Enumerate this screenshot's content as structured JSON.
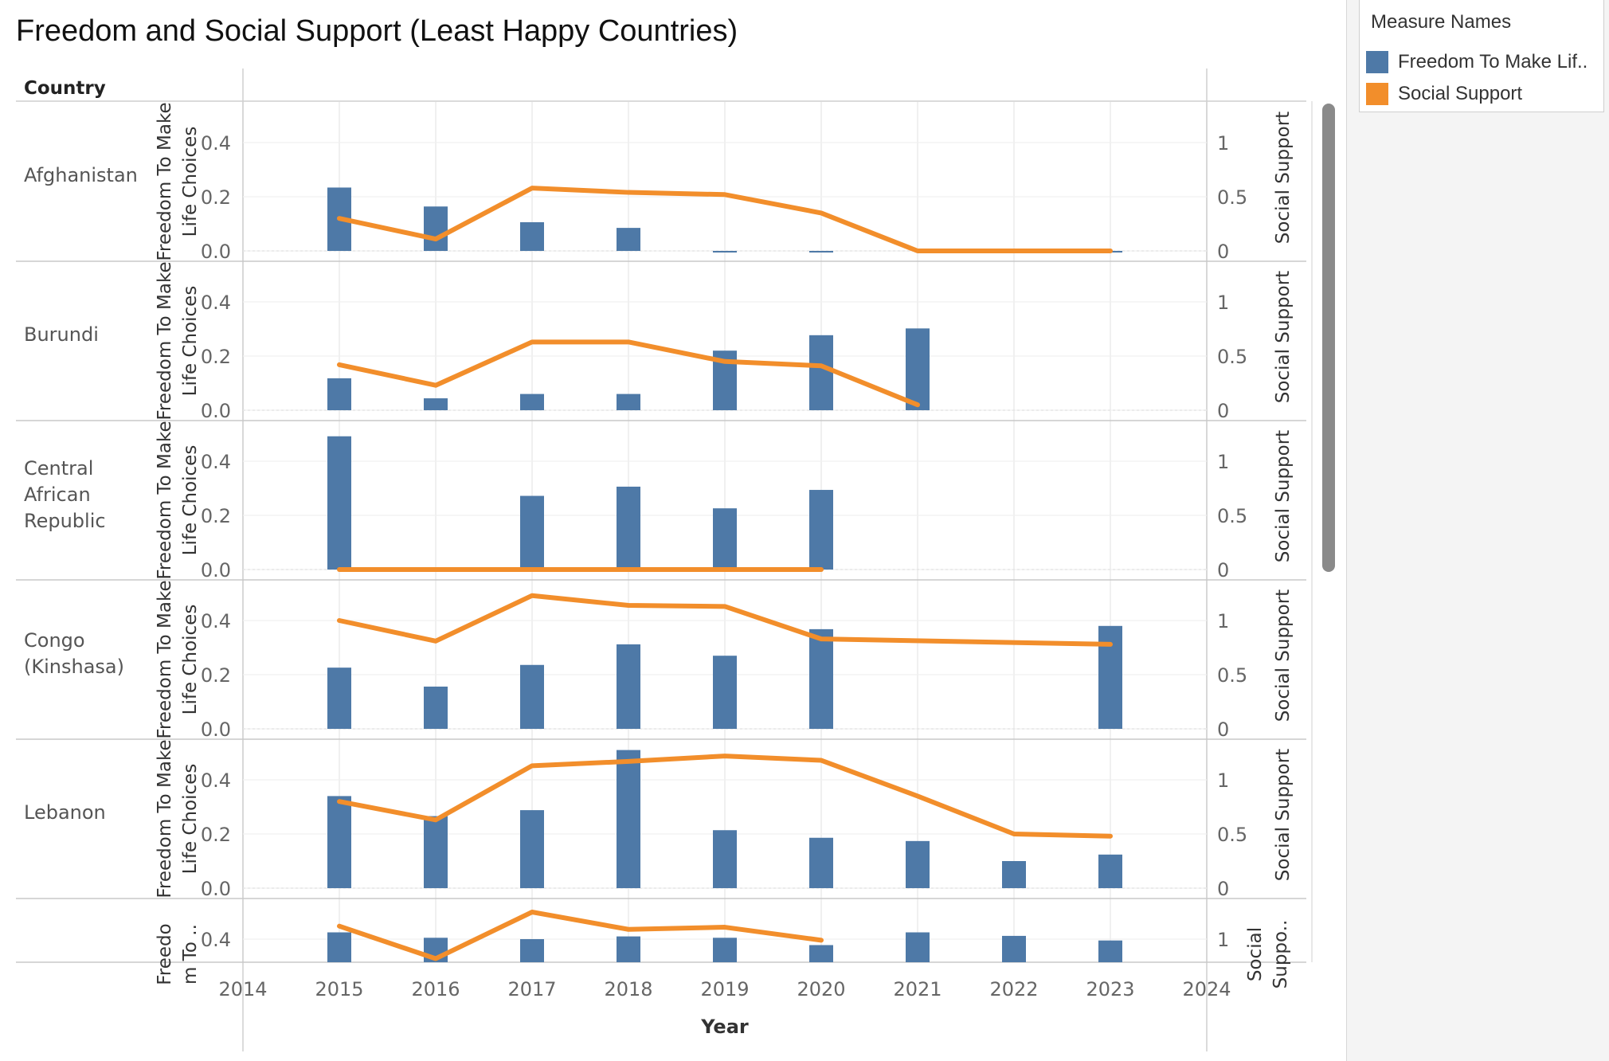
{
  "title": "Freedom and Social Support (Least Happy Countries)",
  "legend": {
    "title": "Measure Names",
    "items": [
      {
        "label": "Freedom To Make Lif..",
        "color": "#4e79a7"
      },
      {
        "label": "Social Support",
        "color": "#f28e2b"
      }
    ]
  },
  "row_header": "Country",
  "left_axis_label": "Freedom To Make Life Choices",
  "left_axis_label_truncated": "Freedo m To ..",
  "right_axis_label": "Social Support",
  "right_axis_label_truncated": "Social Suppo..",
  "chart_data": {
    "type": "bar",
    "xlabel": "Year",
    "x_ticks": [
      "2014",
      "2015",
      "2016",
      "2017",
      "2018",
      "2019",
      "2020",
      "2021",
      "2022",
      "2023",
      "2024"
    ],
    "xlim": [
      2014,
      2024
    ],
    "left_ylim": [
      0,
      0.5
    ],
    "left_ticks": [
      "0.0",
      "0.2",
      "0.4"
    ],
    "right_ylim": [
      0,
      1.25
    ],
    "right_ticks": [
      "0",
      "0.5",
      "1"
    ],
    "panels": [
      {
        "country": [
          "Afghanistan"
        ],
        "freedom": {
          "x": [
            2015,
            2016,
            2017,
            2018,
            2019,
            2020,
            2023
          ],
          "y": [
            0.234,
            0.164,
            0.106,
            0.085,
            -0.005,
            -0.005,
            -0.003
          ]
        },
        "social": {
          "x": [
            2015,
            2016,
            2017,
            2018,
            2019,
            2020,
            2021,
            2022,
            2023
          ],
          "y": [
            0.3,
            0.11,
            0.58,
            0.54,
            0.52,
            0.35,
            0.0,
            0.0,
            0.0
          ]
        }
      },
      {
        "country": [
          "Burundi"
        ],
        "freedom": {
          "x": [
            2015,
            2016,
            2017,
            2018,
            2019,
            2020,
            2021
          ],
          "y": [
            0.118,
            0.044,
            0.06,
            0.06,
            0.22,
            0.277,
            0.302
          ]
        },
        "social": {
          "x": [
            2015,
            2016,
            2017,
            2018,
            2019,
            2020,
            2021
          ],
          "y": [
            0.42,
            0.23,
            0.63,
            0.63,
            0.45,
            0.41,
            0.05
          ]
        }
      },
      {
        "country": [
          "Central",
          "African",
          "Republic"
        ],
        "freedom": {
          "x": [
            2015,
            2017,
            2018,
            2019,
            2020
          ],
          "y": [
            0.492,
            0.272,
            0.306,
            0.226,
            0.294
          ]
        },
        "social": {
          "x": [
            2015,
            2016,
            2017,
            2018,
            2019,
            2020
          ],
          "y": [
            0.0,
            0.0,
            0.0,
            0.0,
            0.0,
            0.0
          ]
        }
      },
      {
        "country": [
          "Congo",
          "(Kinshasa)"
        ],
        "freedom": {
          "x": [
            2015,
            2016,
            2017,
            2018,
            2019,
            2020,
            2023
          ],
          "y": [
            0.226,
            0.156,
            0.236,
            0.312,
            0.27,
            0.368,
            0.38
          ]
        },
        "social": {
          "x": [
            2015,
            2016,
            2017,
            2018,
            2019,
            2020,
            2023
          ],
          "y": [
            1.0,
            0.81,
            1.23,
            1.14,
            1.13,
            0.83,
            0.78
          ]
        }
      },
      {
        "country": [
          "Lebanon"
        ],
        "freedom": {
          "x": [
            2015,
            2016,
            2017,
            2018,
            2019,
            2020,
            2021,
            2022,
            2023
          ],
          "y": [
            0.34,
            0.266,
            0.288,
            0.51,
            0.214,
            0.186,
            0.174,
            0.1,
            0.124
          ]
        },
        "social": {
          "x": [
            2015,
            2016,
            2017,
            2018,
            2019,
            2020,
            2021,
            2022,
            2023
          ],
          "y": [
            0.8,
            0.63,
            1.13,
            1.17,
            1.22,
            1.18,
            0.85,
            0.5,
            0.48
          ]
        }
      },
      {
        "country": [
          ""
        ],
        "freedom": {
          "x": [
            2015,
            2016,
            2017,
            2018,
            2019,
            2020,
            2021,
            2022,
            2023
          ],
          "y": [
            0.425,
            0.405,
            0.4,
            0.41,
            0.405,
            0.378,
            0.425,
            0.412,
            0.395
          ]
        },
        "social": {
          "x": [
            2015,
            2016,
            2017,
            2018,
            2019,
            2020
          ],
          "y": [
            1.12,
            0.82,
            1.25,
            1.09,
            1.11,
            0.99
          ]
        }
      }
    ]
  }
}
